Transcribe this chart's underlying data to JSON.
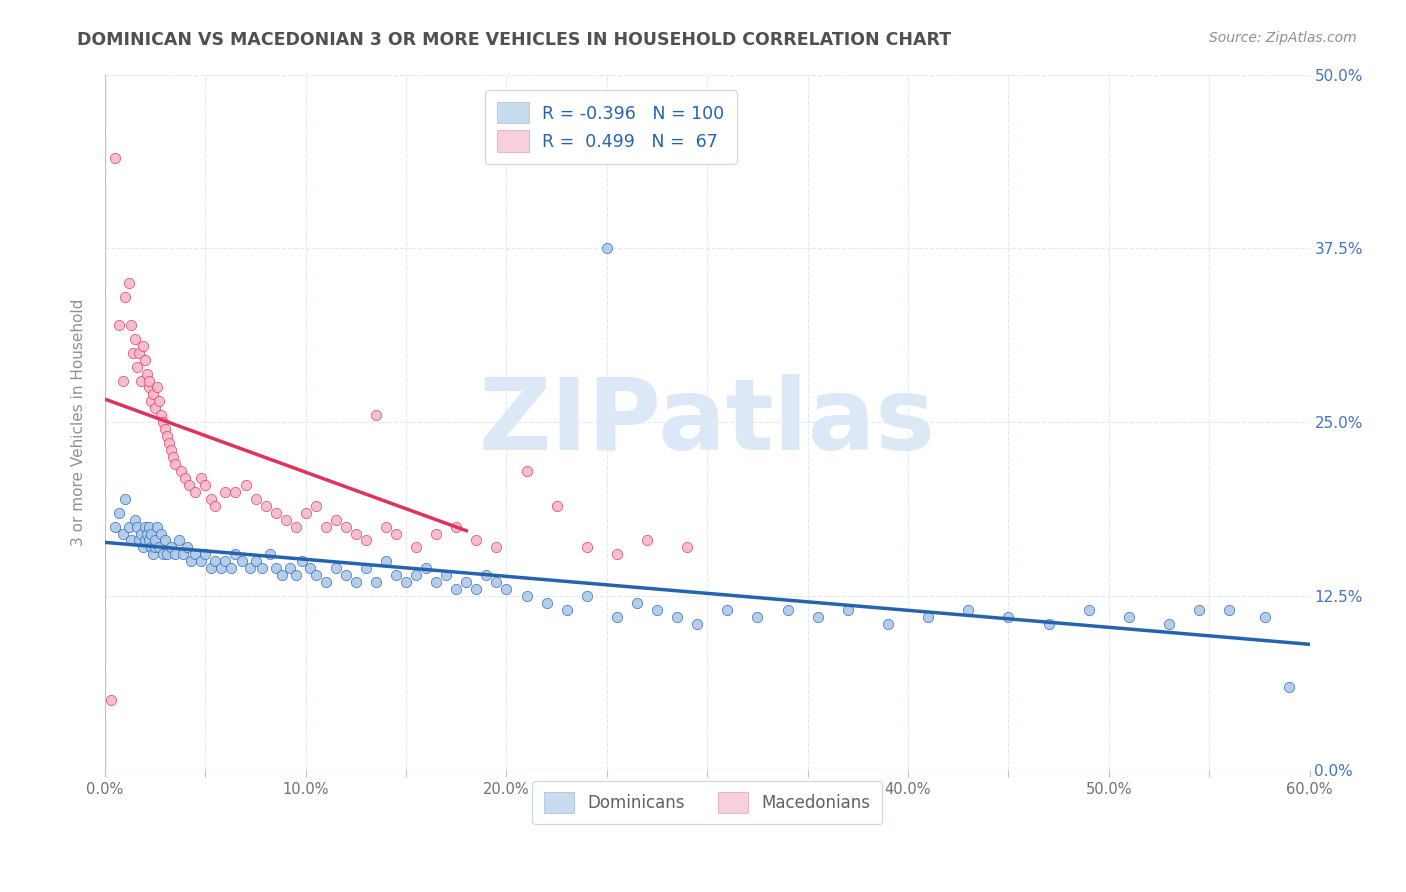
{
  "title": "DOMINICAN VS MACEDONIAN 3 OR MORE VEHICLES IN HOUSEHOLD CORRELATION CHART",
  "source": "Source: ZipAtlas.com",
  "ylabel": "3 or more Vehicles in Household",
  "xlim": [
    0.0,
    0.6
  ],
  "ylim": [
    0.0,
    0.5
  ],
  "xtick_labels": [
    "0.0%",
    "",
    "10.0%",
    "",
    "20.0%",
    "",
    "30.0%",
    "",
    "40.0%",
    "",
    "50.0%",
    "",
    "60.0%"
  ],
  "xtick_vals": [
    0.0,
    0.05,
    0.1,
    0.15,
    0.2,
    0.25,
    0.3,
    0.35,
    0.4,
    0.45,
    0.5,
    0.55,
    0.6
  ],
  "ytick_vals": [
    0.0,
    0.125,
    0.25,
    0.375,
    0.5
  ],
  "ytick_labels_right": [
    "0.0%",
    "12.5%",
    "25.0%",
    "37.5%",
    "50.0%"
  ],
  "dominican_color": "#adc8e8",
  "macedonian_color": "#f5b8ca",
  "dominican_line_color": "#2563ae",
  "macedonian_line_color": "#e0325a",
  "watermark": "ZIPatlas",
  "watermark_color": "#dce8f5",
  "background_color": "#ffffff",
  "grid_color": "#e0e8f0",
  "title_color": "#505050",
  "right_tick_color": "#4472c4",
  "dominican_x": [
    0.005,
    0.007,
    0.009,
    0.01,
    0.012,
    0.013,
    0.015,
    0.016,
    0.017,
    0.018,
    0.019,
    0.02,
    0.02,
    0.021,
    0.022,
    0.022,
    0.023,
    0.023,
    0.024,
    0.025,
    0.025,
    0.026,
    0.027,
    0.028,
    0.029,
    0.03,
    0.031,
    0.033,
    0.035,
    0.037,
    0.039,
    0.041,
    0.043,
    0.045,
    0.048,
    0.05,
    0.053,
    0.055,
    0.058,
    0.06,
    0.063,
    0.065,
    0.068,
    0.072,
    0.075,
    0.078,
    0.082,
    0.085,
    0.088,
    0.092,
    0.095,
    0.098,
    0.102,
    0.105,
    0.11,
    0.115,
    0.12,
    0.125,
    0.13,
    0.135,
    0.14,
    0.145,
    0.15,
    0.155,
    0.16,
    0.165,
    0.17,
    0.175,
    0.18,
    0.185,
    0.19,
    0.195,
    0.2,
    0.21,
    0.22,
    0.23,
    0.24,
    0.25,
    0.255,
    0.265,
    0.275,
    0.285,
    0.295,
    0.31,
    0.325,
    0.34,
    0.355,
    0.37,
    0.39,
    0.41,
    0.43,
    0.45,
    0.47,
    0.49,
    0.51,
    0.53,
    0.545,
    0.56,
    0.578,
    0.59
  ],
  "dominican_y": [
    0.175,
    0.185,
    0.17,
    0.195,
    0.175,
    0.165,
    0.18,
    0.175,
    0.165,
    0.17,
    0.16,
    0.175,
    0.165,
    0.17,
    0.175,
    0.165,
    0.17,
    0.16,
    0.155,
    0.16,
    0.165,
    0.175,
    0.16,
    0.17,
    0.155,
    0.165,
    0.155,
    0.16,
    0.155,
    0.165,
    0.155,
    0.16,
    0.15,
    0.155,
    0.15,
    0.155,
    0.145,
    0.15,
    0.145,
    0.15,
    0.145,
    0.155,
    0.15,
    0.145,
    0.15,
    0.145,
    0.155,
    0.145,
    0.14,
    0.145,
    0.14,
    0.15,
    0.145,
    0.14,
    0.135,
    0.145,
    0.14,
    0.135,
    0.145,
    0.135,
    0.15,
    0.14,
    0.135,
    0.14,
    0.145,
    0.135,
    0.14,
    0.13,
    0.135,
    0.13,
    0.14,
    0.135,
    0.13,
    0.125,
    0.12,
    0.115,
    0.125,
    0.375,
    0.11,
    0.12,
    0.115,
    0.11,
    0.105,
    0.115,
    0.11,
    0.115,
    0.11,
    0.115,
    0.105,
    0.11,
    0.115,
    0.11,
    0.105,
    0.115,
    0.11,
    0.105,
    0.115,
    0.115,
    0.11,
    0.06
  ],
  "macedonian_x": [
    0.003,
    0.005,
    0.007,
    0.009,
    0.01,
    0.012,
    0.013,
    0.014,
    0.015,
    0.016,
    0.017,
    0.018,
    0.019,
    0.02,
    0.021,
    0.022,
    0.022,
    0.023,
    0.024,
    0.025,
    0.026,
    0.027,
    0.028,
    0.029,
    0.03,
    0.031,
    0.032,
    0.033,
    0.034,
    0.035,
    0.038,
    0.04,
    0.042,
    0.045,
    0.048,
    0.05,
    0.053,
    0.055,
    0.06,
    0.065,
    0.07,
    0.075,
    0.08,
    0.085,
    0.09,
    0.095,
    0.1,
    0.105,
    0.11,
    0.115,
    0.12,
    0.125,
    0.13,
    0.135,
    0.14,
    0.145,
    0.155,
    0.165,
    0.175,
    0.185,
    0.195,
    0.21,
    0.225,
    0.24,
    0.255,
    0.27,
    0.29
  ],
  "macedonian_y": [
    0.05,
    0.44,
    0.32,
    0.28,
    0.34,
    0.35,
    0.32,
    0.3,
    0.31,
    0.29,
    0.3,
    0.28,
    0.305,
    0.295,
    0.285,
    0.275,
    0.28,
    0.265,
    0.27,
    0.26,
    0.275,
    0.265,
    0.255,
    0.25,
    0.245,
    0.24,
    0.235,
    0.23,
    0.225,
    0.22,
    0.215,
    0.21,
    0.205,
    0.2,
    0.21,
    0.205,
    0.195,
    0.19,
    0.2,
    0.2,
    0.205,
    0.195,
    0.19,
    0.185,
    0.18,
    0.175,
    0.185,
    0.19,
    0.175,
    0.18,
    0.175,
    0.17,
    0.165,
    0.255,
    0.175,
    0.17,
    0.16,
    0.17,
    0.175,
    0.165,
    0.16,
    0.215,
    0.19,
    0.16,
    0.155,
    0.165,
    0.16
  ]
}
